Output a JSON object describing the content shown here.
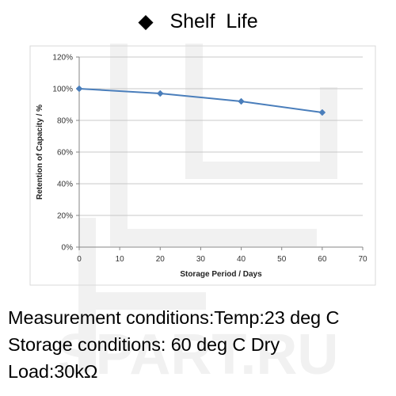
{
  "title": "◆   Shelf  Life",
  "conditions": [
    "Measurement conditions:Temp:23 deg C",
    "Storage conditions: 60 deg C Dry",
    "Load:30kΩ"
  ],
  "watermark": {
    "text": "SPART.RU",
    "color": "#f1f1f1"
  },
  "chart_data": {
    "type": "line",
    "title": "",
    "xlabel": "Storage Period / Days",
    "ylabel": "Retention of Capacity  / %",
    "xlim": [
      0,
      70
    ],
    "ylim": [
      0,
      120
    ],
    "x_ticks": [
      0,
      10,
      20,
      30,
      40,
      50,
      60,
      70
    ],
    "y_ticks": [
      {
        "value": 0,
        "label": "0%"
      },
      {
        "value": 20,
        "label": "20%"
      },
      {
        "value": 40,
        "label": "40%"
      },
      {
        "value": 60,
        "label": "60%"
      },
      {
        "value": 80,
        "label": "80%"
      },
      {
        "value": 100,
        "label": "100%"
      },
      {
        "value": 120,
        "label": "120%"
      }
    ],
    "grid": {
      "horizontal": true,
      "vertical": false
    },
    "legend": "none",
    "marker": "diamond",
    "line_color": "#4a7ebb",
    "grid_color": "#c8c8c8",
    "series": [
      {
        "x": [
          0,
          20,
          40,
          60
        ],
        "y": [
          100,
          97,
          92,
          85
        ]
      }
    ]
  }
}
